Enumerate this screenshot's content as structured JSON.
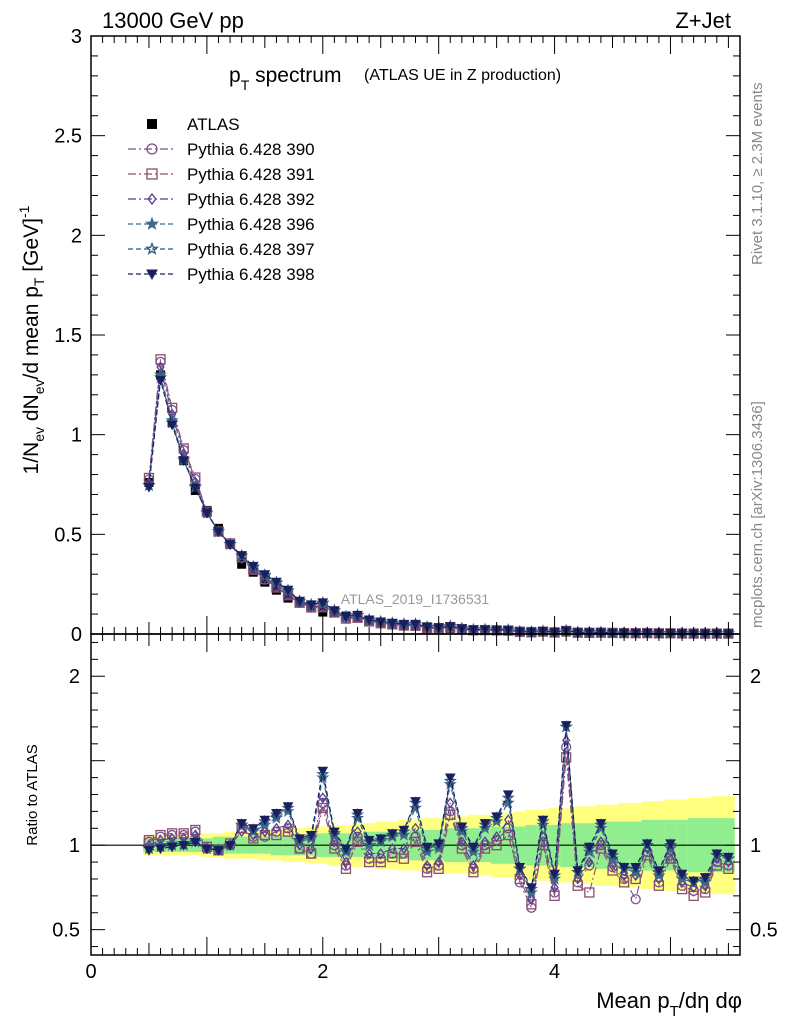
{
  "header": {
    "left": "13000 GeV pp",
    "right": "Z+Jet"
  },
  "chart_data": [
    {
      "type": "scatter",
      "panel": "main",
      "title_main": "p",
      "title_sub": "T",
      "title_rest": " spectrum",
      "title_note": "(ATLAS UE in Z production)",
      "ylabel": "1/N_ev dN_ev/d mean p_T [GeV]^-1",
      "ylim": [
        0,
        3
      ],
      "yticks": [
        "0",
        "0.5",
        "1",
        "1.5",
        "2",
        "2.5",
        "3"
      ],
      "watermark": "ATLAS_2019_I1736531",
      "x": [
        0.5,
        0.6,
        0.7,
        0.8,
        0.9,
        1.0,
        1.1,
        1.2,
        1.3,
        1.4,
        1.5,
        1.6,
        1.7,
        1.8,
        1.9,
        2.0,
        2.1,
        2.2,
        2.3,
        2.4,
        2.5,
        2.6,
        2.7,
        2.8,
        2.9,
        3.0,
        3.1,
        3.2,
        3.3,
        3.4,
        3.5,
        3.6,
        3.7,
        3.8,
        3.9,
        4.0,
        4.1,
        4.2,
        4.3,
        4.4,
        4.5,
        4.6,
        4.7,
        4.8,
        4.9,
        5.0,
        5.1,
        5.2,
        5.3,
        5.4,
        5.5
      ],
      "atlas": [
        0.76,
        1.3,
        1.06,
        0.87,
        0.72,
        0.62,
        0.53,
        0.45,
        0.35,
        0.31,
        0.26,
        0.22,
        0.18,
        0.16,
        0.14,
        0.11,
        0.11,
        0.09,
        0.08,
        0.07,
        0.06,
        0.052,
        0.046,
        0.04,
        0.036,
        0.032,
        0.028,
        0.025,
        0.022,
        0.02,
        0.018,
        0.016,
        0.014,
        0.013,
        0.012,
        0.011,
        0.01,
        0.009,
        0.008,
        0.007,
        0.0065,
        0.006,
        0.0055,
        0.005,
        0.0045,
        0.004,
        0.0036,
        0.0033,
        0.003,
        0.0027,
        0.0025
      ],
      "legend": [
        "ATLAS",
        "Pythia 6.428 390",
        "Pythia 6.428 391",
        "Pythia 6.428 392",
        "Pythia 6.428 396",
        "Pythia 6.428 397",
        "Pythia 6.428 398"
      ]
    },
    {
      "type": "scatter",
      "panel": "ratio",
      "ylabel": "Ratio to ATLAS",
      "xlabel": "Mean p_T/dη dφ",
      "xlim": [
        0,
        5.6
      ],
      "ylim": [
        0.35,
        2.25
      ],
      "xticks": [
        "0",
        "2",
        "4"
      ],
      "yticks": [
        "0.5",
        "1",
        "2"
      ],
      "band_green": [
        0.04,
        0.04,
        0.04,
        0.04,
        0.04,
        0.04,
        0.05,
        0.05,
        0.05,
        0.05,
        0.05,
        0.06,
        0.06,
        0.06,
        0.06,
        0.07,
        0.07,
        0.07,
        0.07,
        0.08,
        0.08,
        0.08,
        0.08,
        0.09,
        0.09,
        0.09,
        0.1,
        0.1,
        0.1,
        0.1,
        0.11,
        0.11,
        0.11,
        0.12,
        0.12,
        0.12,
        0.13,
        0.13,
        0.13,
        0.14,
        0.14,
        0.14,
        0.14,
        0.15,
        0.15,
        0.15,
        0.15,
        0.16,
        0.16,
        0.16,
        0.16
      ],
      "band_yellow": [
        0.06,
        0.06,
        0.06,
        0.06,
        0.06,
        0.07,
        0.07,
        0.08,
        0.08,
        0.08,
        0.09,
        0.09,
        0.1,
        0.1,
        0.11,
        0.11,
        0.12,
        0.12,
        0.13,
        0.13,
        0.14,
        0.14,
        0.15,
        0.15,
        0.16,
        0.16,
        0.17,
        0.17,
        0.18,
        0.18,
        0.19,
        0.19,
        0.2,
        0.21,
        0.21,
        0.22,
        0.22,
        0.23,
        0.23,
        0.24,
        0.24,
        0.25,
        0.25,
        0.26,
        0.26,
        0.27,
        0.27,
        0.28,
        0.28,
        0.29,
        0.29
      ],
      "series": [
        {
          "name": "Pythia 6.428 390",
          "color": "#7b4f8e",
          "marker": "circle",
          "dash": "8,3,2,3",
          "values": [
            1.02,
            1.05,
            1.06,
            1.06,
            1.08,
            0.98,
            0.97,
            1.0,
            1.1,
            1.05,
            1.05,
            1.08,
            1.1,
            0.98,
            0.95,
            1.25,
            1.0,
            0.88,
            1.05,
            0.92,
            0.92,
            0.95,
            0.95,
            1.05,
            0.86,
            0.88,
            1.2,
            1.0,
            0.86,
            1.0,
            1.03,
            1.1,
            0.78,
            0.63,
            1.02,
            0.72,
            1.58,
            0.78,
            0.88,
            1.0,
            0.87,
            0.8,
            0.68,
            0.96,
            0.78,
            0.94,
            0.76,
            0.73,
            0.74,
            0.9,
            0.88
          ]
        },
        {
          "name": "Pythia 6.428 391",
          "color": "#8a4f6e",
          "marker": "square",
          "dash": "8,3,2,3",
          "values": [
            1.03,
            1.06,
            1.07,
            1.07,
            1.09,
            0.99,
            0.97,
            1.01,
            1.1,
            1.04,
            1.06,
            1.06,
            1.08,
            0.98,
            0.95,
            1.22,
            0.98,
            0.86,
            1.02,
            0.9,
            0.9,
            0.93,
            0.92,
            1.02,
            0.84,
            0.86,
            1.18,
            0.98,
            0.84,
            0.98,
            1.0,
            1.06,
            0.8,
            0.65,
            1.0,
            0.7,
            1.52,
            0.76,
            0.72,
            0.98,
            0.85,
            0.78,
            0.8,
            0.94,
            0.76,
            0.92,
            0.74,
            0.7,
            0.72,
            0.88,
            0.86
          ]
        },
        {
          "name": "Pythia 6.428 392",
          "color": "#5a3f8e",
          "marker": "diamond",
          "dash": "8,3,2,3",
          "values": [
            1.0,
            1.03,
            1.04,
            1.04,
            1.06,
            0.98,
            0.97,
            1.0,
            1.08,
            1.06,
            1.08,
            1.1,
            1.12,
            1.0,
            0.98,
            1.28,
            1.02,
            0.9,
            1.08,
            0.95,
            0.95,
            0.98,
            0.98,
            1.1,
            0.88,
            0.9,
            1.25,
            1.02,
            0.88,
            1.02,
            1.05,
            1.15,
            0.82,
            0.68,
            1.05,
            0.75,
            1.62,
            0.8,
            0.9,
            1.02,
            0.88,
            0.82,
            0.82,
            0.98,
            0.8,
            0.96,
            0.78,
            0.75,
            0.76,
            0.92,
            0.9
          ]
        },
        {
          "name": "Pythia 6.428 396",
          "color": "#3f6a8e",
          "marker": "star-filled",
          "dash": "5,3",
          "values": [
            0.98,
            1.0,
            1.01,
            1.01,
            1.03,
            0.98,
            0.97,
            1.0,
            1.12,
            1.08,
            1.12,
            1.16,
            1.2,
            1.02,
            1.04,
            1.4,
            1.06,
            0.96,
            1.16,
            1.0,
            1.02,
            1.05,
            1.06,
            1.22,
            0.96,
            0.98,
            1.36,
            1.08,
            0.96,
            1.1,
            1.14,
            1.25,
            0.86,
            0.72,
            1.12,
            0.8,
            1.7,
            0.84,
            0.96,
            1.1,
            0.92,
            0.86,
            0.84,
            1.0,
            0.82,
            0.98,
            0.8,
            0.78,
            0.78,
            0.94,
            0.92
          ]
        },
        {
          "name": "Pythia 6.428 397",
          "color": "#2f5a7e",
          "marker": "star-open",
          "dash": "5,3",
          "values": [
            0.98,
            0.99,
            1.0,
            1.0,
            1.02,
            0.98,
            0.97,
            1.0,
            1.12,
            1.09,
            1.14,
            1.18,
            1.22,
            1.03,
            1.05,
            1.42,
            1.07,
            0.97,
            1.18,
            1.02,
            1.03,
            1.06,
            1.08,
            1.25,
            0.98,
            1.0,
            1.38,
            1.1,
            0.98,
            1.12,
            1.16,
            1.28,
            0.86,
            0.74,
            1.14,
            0.82,
            1.7,
            0.84,
            0.98,
            1.12,
            0.94,
            0.86,
            0.86,
            1.0,
            0.84,
            1.0,
            0.82,
            0.78,
            0.8,
            0.94,
            0.92
          ]
        },
        {
          "name": "Pythia 6.428 398",
          "color": "#1a1f5e",
          "marker": "triangle-down",
          "dash": "5,3",
          "values": [
            0.97,
            0.98,
            0.99,
            1.0,
            1.02,
            0.98,
            0.97,
            1.0,
            1.13,
            1.1,
            1.15,
            1.19,
            1.23,
            1.04,
            1.06,
            1.44,
            1.08,
            0.98,
            1.19,
            1.03,
            1.04,
            1.07,
            1.09,
            1.26,
            0.99,
            1.01,
            1.4,
            1.11,
            0.99,
            1.13,
            1.17,
            1.3,
            0.87,
            0.75,
            1.15,
            0.83,
            1.71,
            0.85,
            0.99,
            1.13,
            0.95,
            0.87,
            0.87,
            1.01,
            0.85,
            1.01,
            0.83,
            0.79,
            0.81,
            0.95,
            0.93
          ]
        }
      ]
    }
  ],
  "side_text": {
    "top": "Rivet 3.1.10, ≥ 2.3M events",
    "bottom": "mcplots.cern.ch [arXiv:1306.3436]"
  }
}
